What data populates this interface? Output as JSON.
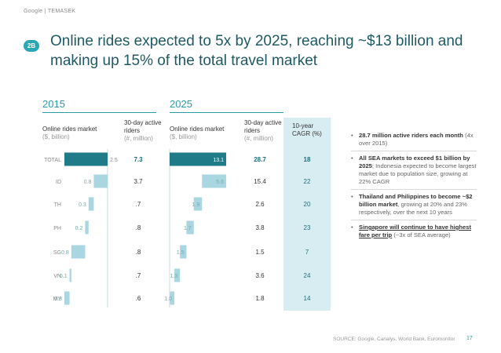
{
  "brand": "Google  |  TEMASEK",
  "badge": "2B",
  "title": "Online rides expected to 5x by 2025, reaching ~$13 billion and making up 15% of the total travel market",
  "years": {
    "left": "2015",
    "right": "2025"
  },
  "headers": {
    "market_2015": "Online rides market",
    "market_2015_unit": "($, billion)",
    "riders_2015": "30-day active riders",
    "riders_2015_unit": "(#, million)",
    "market_2025": "Online rides market",
    "market_2025_unit": "($, billion)",
    "riders_2025": "30-day active riders",
    "riders_2025_unit": "(#, million)",
    "cagr": "10-year CAGR (%)"
  },
  "chart_data": {
    "type": "bar",
    "categories": [
      "TOTAL",
      "ID",
      "TH",
      "PH",
      "SG",
      "VN",
      "MY"
    ],
    "series": [
      {
        "name": "2015",
        "values": [
          2.5,
          0.8,
          0.3,
          0.2,
          0.8,
          0.1,
          0.3
        ]
      },
      {
        "name": "2025",
        "values": [
          13.1,
          5.6,
          1.9,
          1.7,
          1.5,
          1.3,
          1.0
        ]
      }
    ],
    "riders_2015": [
      "7.3",
      "3.7",
      ".7",
      ".8",
      ".8",
      ".7",
      ".6"
    ],
    "riders_2025": [
      "28.7",
      "15.4",
      "2.6",
      "3.8",
      "1.5",
      "3.6",
      "1.8"
    ],
    "cagr": [
      "18",
      "22",
      "20",
      "23",
      "7",
      "24",
      "14"
    ],
    "colors": {
      "total": "#1e7b87",
      "country": "#a9d6e0"
    }
  },
  "bullets": [
    {
      "bold": "28.7 million active riders each month",
      "rest": " (4x over 2015)"
    },
    {
      "bold": "All SEA markets to exceed $1 billion by 2025",
      "rest": "; Indonesia expected to become largest market due to population size, growing at 22% CAGR"
    },
    {
      "bold": "Thailand and Philippines to become ~$2 billion market",
      "rest": ", growing at 20% and 23% respectively, over the next 10 years"
    },
    {
      "bold": "Singapore will continue to have highest fare per trip",
      "rest": " (~3x of SEA average)"
    }
  ],
  "source": "SOURCE: Google, Canalys, World Bank, Euromonitor",
  "page_number": "17"
}
